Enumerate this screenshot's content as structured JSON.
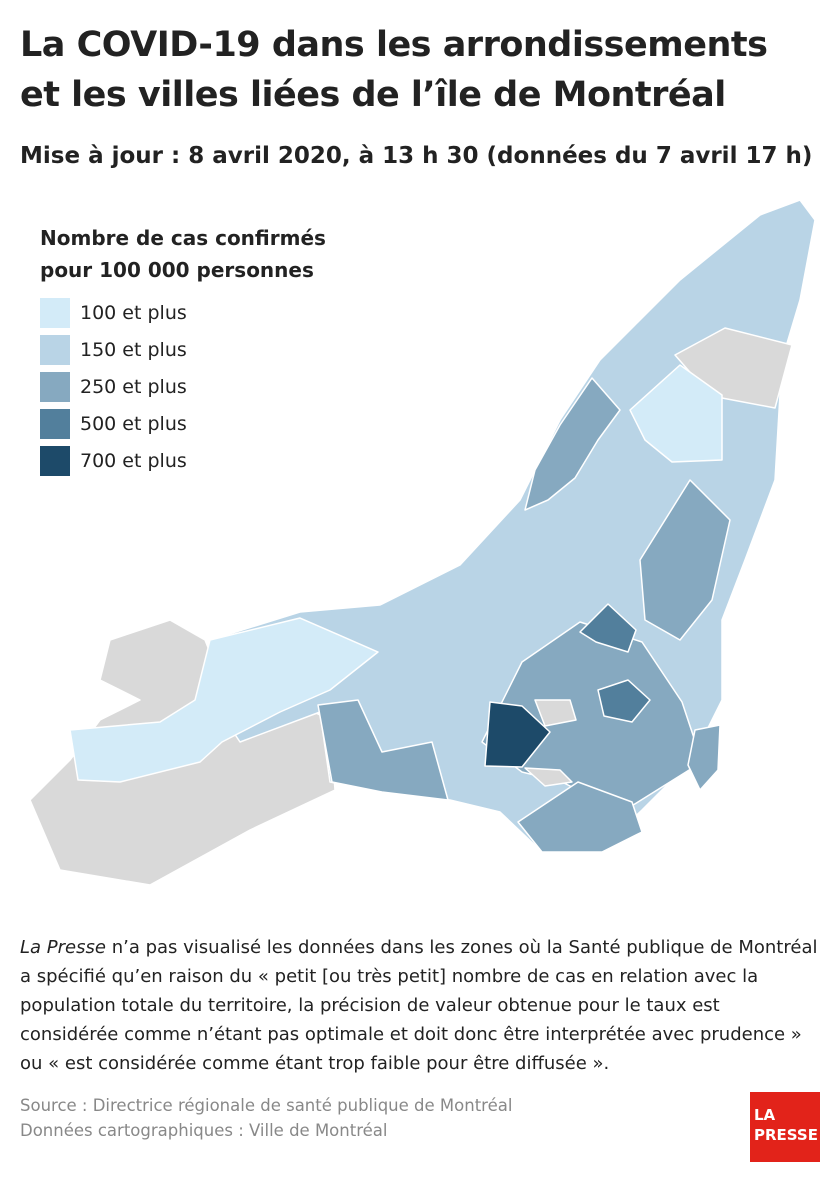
{
  "header": {
    "title": [
      "La COVID-19 dans les arrondissements",
      "et les villes liées de l’île de Montréal"
    ],
    "subtitle": "Mise à jour : 8 avril 2020, à 13 h 30 (données du 7 avril 17 h)"
  },
  "legend": {
    "title": [
      "Nombre de cas confirmés",
      "pour 100 000 personnes"
    ],
    "items": [
      {
        "label": "100 et plus",
        "color": "#d3ebf8"
      },
      {
        "label": "150 et plus",
        "color": "#b9d4e6"
      },
      {
        "label": "250 et plus",
        "color": "#86a9c0"
      },
      {
        "label": "500 et plus",
        "color": "#527f9c"
      },
      {
        "label": "700 et plus",
        "color": "#1d4a69"
      }
    ]
  },
  "note": {
    "lead": "La Presse",
    "lines": [
      "n’a pas visualisé les données dans les zones où la Santé publique de Montréal",
      "a spécifié qu’en raison du « petit [ou très petit] nombre de cas en relation avec la",
      "population totale du territoire, la précision de valeur obtenue pour le taux est",
      "considérée comme n’étant pas optimale et doit donc être interprétée avec prudence »",
      "ou « est considérée comme étant trop faible pour être diffusée »."
    ]
  },
  "source": [
    "Source : Directrice régionale de santé publique de Montréal",
    "Données cartographiques : Ville de Montréal"
  ],
  "logo": [
    "LA",
    "PRESSE"
  ]
}
